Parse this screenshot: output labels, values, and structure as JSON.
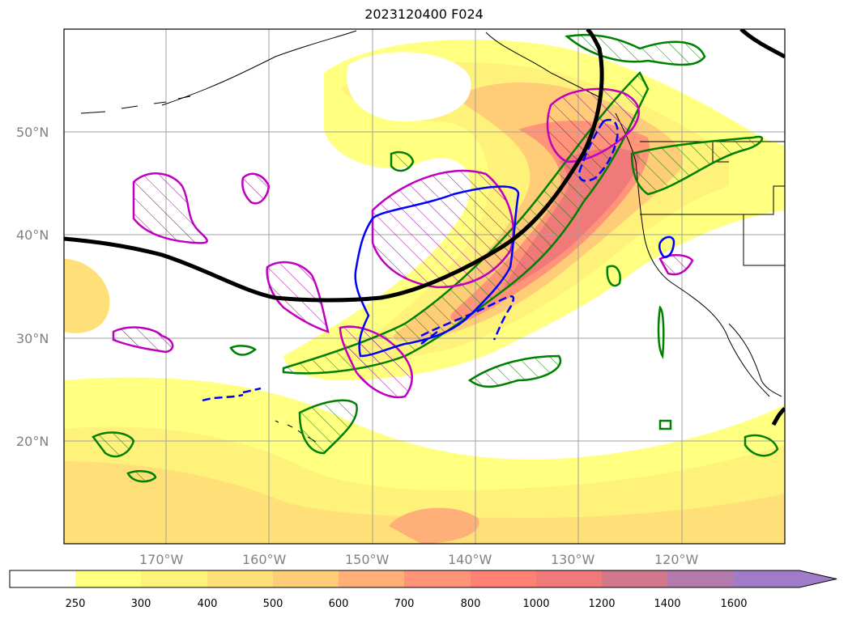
{
  "title": "2023120400 F024",
  "map": {
    "lat_labels": [
      "50°N",
      "40°N",
      "30°N",
      "20°N"
    ],
    "lon_labels": [
      "170°W",
      "160°W",
      "150°W",
      "140°W",
      "130°W",
      "120°W"
    ],
    "fill_palette": [
      "#ffffff",
      "#ffff80",
      "#fff27a",
      "#ffe078",
      "#ffcc78",
      "#ffb078",
      "#ff9478",
      "#ff8074",
      "#f07a7a",
      "#d2788c",
      "#b47aae",
      "#a07cc8"
    ],
    "contours": {
      "thick_line_color": "#000000",
      "green": "#008000",
      "magenta": "#c000c0",
      "blue": "#0000ff"
    }
  },
  "colorbar": {
    "labels": [
      "250",
      "300",
      "400",
      "500",
      "600",
      "700",
      "800",
      "1000",
      "1200",
      "1400",
      "1600"
    ]
  }
}
